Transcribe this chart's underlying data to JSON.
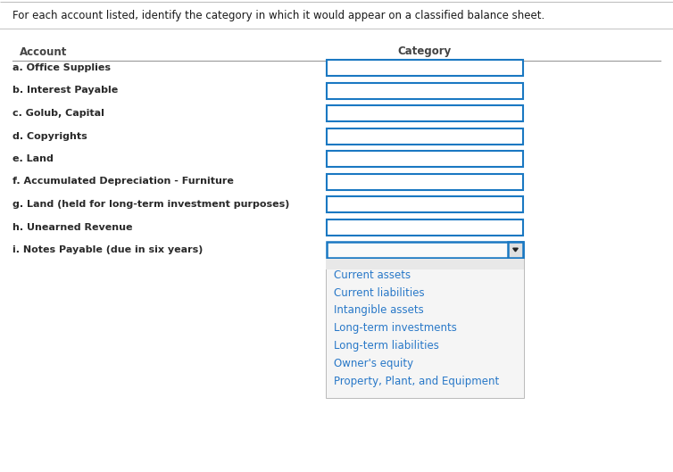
{
  "title": "For each account listed, identify the category in which it would appear on a classified balance sheet.",
  "header_account": "Account",
  "header_category": "Category",
  "accounts": [
    "a. Office Supplies",
    "b. Interest Payable",
    "c. Golub, Capital",
    "d. Copyrights",
    "e. Land",
    "f. Accumulated Depreciation - Furniture",
    "g. Land (held for long-term investment purposes)",
    "h. Unearned Revenue",
    "i. Notes Payable (due in six years)"
  ],
  "dropdown_options": [
    "Current assets",
    "Current liabilities",
    "Intangible assets",
    "Long-term investments",
    "Long-term liabilities",
    "Owner's equity",
    "Property, Plant, and Equipment"
  ],
  "bg_color": "#ffffff",
  "text_color": "#2a2a2a",
  "header_color": "#444444",
  "title_color": "#1a1a1a",
  "box_border_color": "#1a78c2",
  "dropdown_bg": "#f5f5f5",
  "dropdown_text_color": "#2878c8",
  "separator_color": "#c8c8c8",
  "arrow_color": "#222222",
  "title_fontsize": 8.5,
  "header_fontsize": 8.5,
  "account_fontsize": 8.0,
  "dropdown_fontsize": 8.5,
  "figwidth": 7.54,
  "figheight": 5.29,
  "dpi": 100
}
